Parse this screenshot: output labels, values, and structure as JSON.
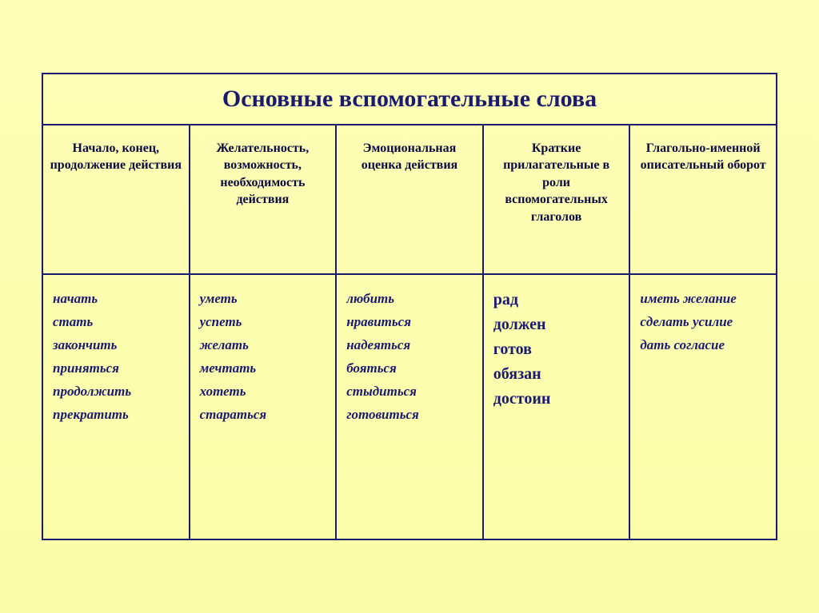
{
  "title": "Основные вспомогательные слова",
  "columns": [
    {
      "header": "Начало, конец, продолжение действия",
      "body": "начать\nстать\nзакончить\nприняться\nпродолжить\nпрекратить"
    },
    {
      "header": "Желательность, возможность, необходимость действия",
      "body": "уметь\nуспеть\nжелать\nмечтать\nхотеть\nстараться"
    },
    {
      "header": "Эмоциональная оценка действия",
      "body": "любить\nнравиться\nнадеяться\nбояться\nстыдиться\nготовиться"
    },
    {
      "header": "Краткие прилагательные в роли вспомогательных глаголов",
      "body": "рад\nдолжен\nготов\nобязан\nдостоин"
    },
    {
      "header": "Глагольно-именной описательный оборот",
      "body": "иметь желание\nсделать усилие\nдать согласие"
    }
  ],
  "colors": {
    "border": "#1a1a6e",
    "text": "#1a1a6e",
    "bg_top": "#feffb8",
    "bg_bottom": "#fbfda8"
  },
  "table": {
    "type": "table",
    "cols": 5,
    "rows": 2,
    "title_fontsize": 30,
    "header_fontsize": 16,
    "body_fontsize": 17,
    "col4_fontsize": 20
  }
}
